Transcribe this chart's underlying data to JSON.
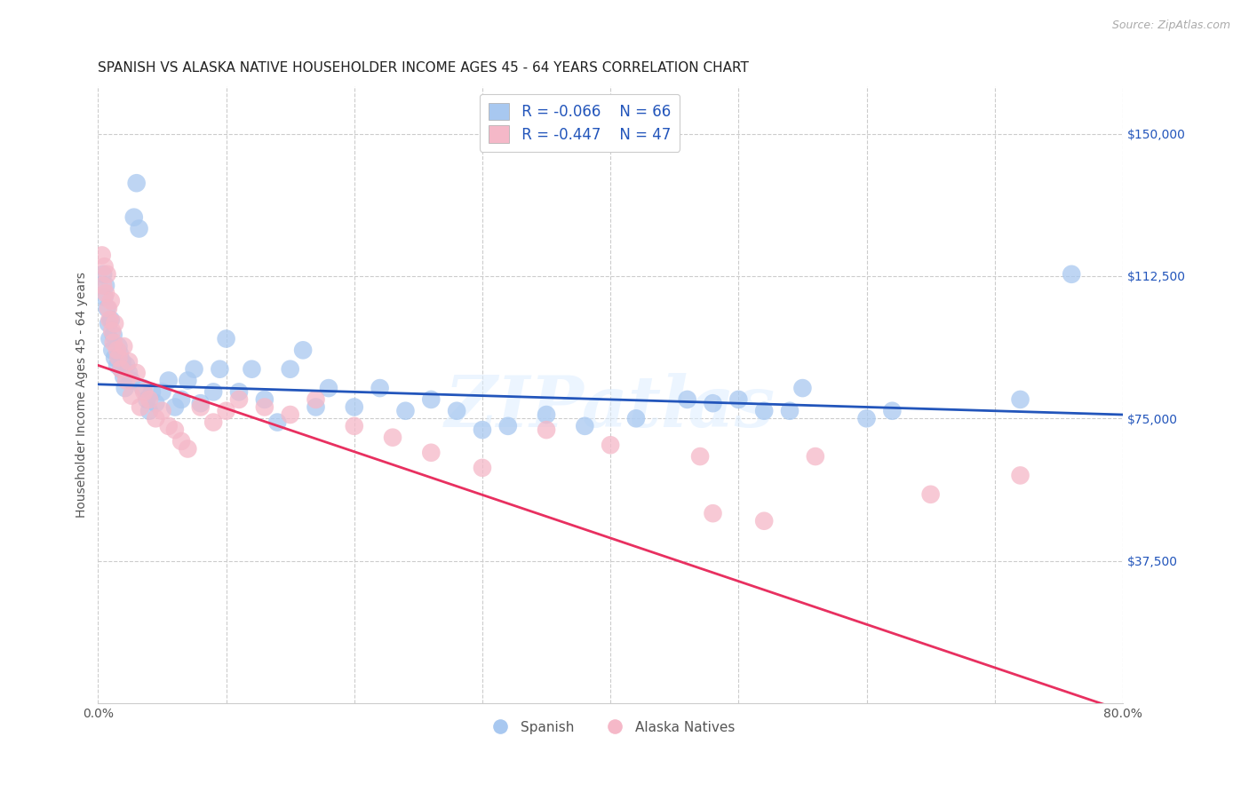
{
  "title": "SPANISH VS ALASKA NATIVE HOUSEHOLDER INCOME AGES 45 - 64 YEARS CORRELATION CHART",
  "source": "Source: ZipAtlas.com",
  "ylabel": "Householder Income Ages 45 - 64 years",
  "xmin": 0.0,
  "xmax": 0.8,
  "ymin": 0,
  "ymax": 162500,
  "yticks": [
    0,
    37500,
    75000,
    112500,
    150000
  ],
  "ytick_labels": [
    "",
    "$37,500",
    "$75,000",
    "$112,500",
    "$150,000"
  ],
  "xticks": [
    0.0,
    0.1,
    0.2,
    0.3,
    0.4,
    0.5,
    0.6,
    0.7,
    0.8
  ],
  "xtick_labels": [
    "0.0%",
    "",
    "",
    "",
    "",
    "",
    "",
    "",
    "80.0%"
  ],
  "blue_color": "#a8c8f0",
  "pink_color": "#f5b8c8",
  "blue_line_color": "#2255bb",
  "pink_line_color": "#e83060",
  "watermark": "ZIPatlas",
  "legend_R_blue": "R = -0.066",
  "legend_N_blue": "N = 66",
  "legend_R_pink": "R = -0.447",
  "legend_N_pink": "N = 47",
  "blue_scatter_x": [
    0.004,
    0.005,
    0.006,
    0.007,
    0.008,
    0.009,
    0.01,
    0.011,
    0.012,
    0.013,
    0.015,
    0.016,
    0.017,
    0.018,
    0.019,
    0.02,
    0.021,
    0.022,
    0.024,
    0.026,
    0.028,
    0.03,
    0.032,
    0.035,
    0.038,
    0.04,
    0.042,
    0.045,
    0.05,
    0.055,
    0.06,
    0.065,
    0.07,
    0.075,
    0.08,
    0.09,
    0.095,
    0.1,
    0.11,
    0.12,
    0.13,
    0.14,
    0.15,
    0.16,
    0.17,
    0.18,
    0.2,
    0.22,
    0.24,
    0.26,
    0.28,
    0.3,
    0.32,
    0.35,
    0.38,
    0.42,
    0.46,
    0.5,
    0.54,
    0.6,
    0.48,
    0.52,
    0.55,
    0.62,
    0.72,
    0.76
  ],
  "blue_scatter_y": [
    113000,
    107000,
    110000,
    104000,
    100000,
    96000,
    101000,
    93000,
    97000,
    91000,
    89000,
    94000,
    92000,
    88000,
    90000,
    86000,
    83000,
    89000,
    87000,
    85000,
    128000,
    137000,
    125000,
    83000,
    80000,
    77000,
    82000,
    79000,
    82000,
    85000,
    78000,
    80000,
    85000,
    88000,
    79000,
    82000,
    88000,
    96000,
    82000,
    88000,
    80000,
    74000,
    88000,
    93000,
    78000,
    83000,
    78000,
    83000,
    77000,
    80000,
    77000,
    72000,
    73000,
    76000,
    73000,
    75000,
    80000,
    80000,
    77000,
    75000,
    79000,
    77000,
    83000,
    77000,
    80000,
    113000
  ],
  "pink_scatter_x": [
    0.003,
    0.004,
    0.005,
    0.006,
    0.007,
    0.008,
    0.009,
    0.01,
    0.011,
    0.012,
    0.013,
    0.015,
    0.016,
    0.018,
    0.02,
    0.022,
    0.024,
    0.026,
    0.03,
    0.033,
    0.036,
    0.04,
    0.045,
    0.05,
    0.055,
    0.06,
    0.065,
    0.07,
    0.08,
    0.09,
    0.1,
    0.11,
    0.13,
    0.15,
    0.17,
    0.2,
    0.23,
    0.26,
    0.3,
    0.35,
    0.4,
    0.47,
    0.56,
    0.65,
    0.48,
    0.52,
    0.72
  ],
  "pink_scatter_y": [
    118000,
    110000,
    115000,
    108000,
    113000,
    104000,
    101000,
    106000,
    98000,
    95000,
    100000,
    93000,
    91000,
    88000,
    94000,
    85000,
    90000,
    81000,
    87000,
    78000,
    82000,
    80000,
    75000,
    77000,
    73000,
    72000,
    69000,
    67000,
    78000,
    74000,
    77000,
    80000,
    78000,
    76000,
    80000,
    73000,
    70000,
    66000,
    62000,
    72000,
    68000,
    65000,
    65000,
    55000,
    50000,
    48000,
    60000
  ],
  "blue_line_x0": 0.0,
  "blue_line_x1": 0.8,
  "blue_line_y0": 84000,
  "blue_line_y1": 76000,
  "pink_line_x0": 0.0,
  "pink_line_x1": 0.8,
  "pink_line_y0": 89000,
  "pink_line_y1": -2000,
  "title_fontsize": 11,
  "axis_label_fontsize": 10,
  "tick_fontsize": 10
}
